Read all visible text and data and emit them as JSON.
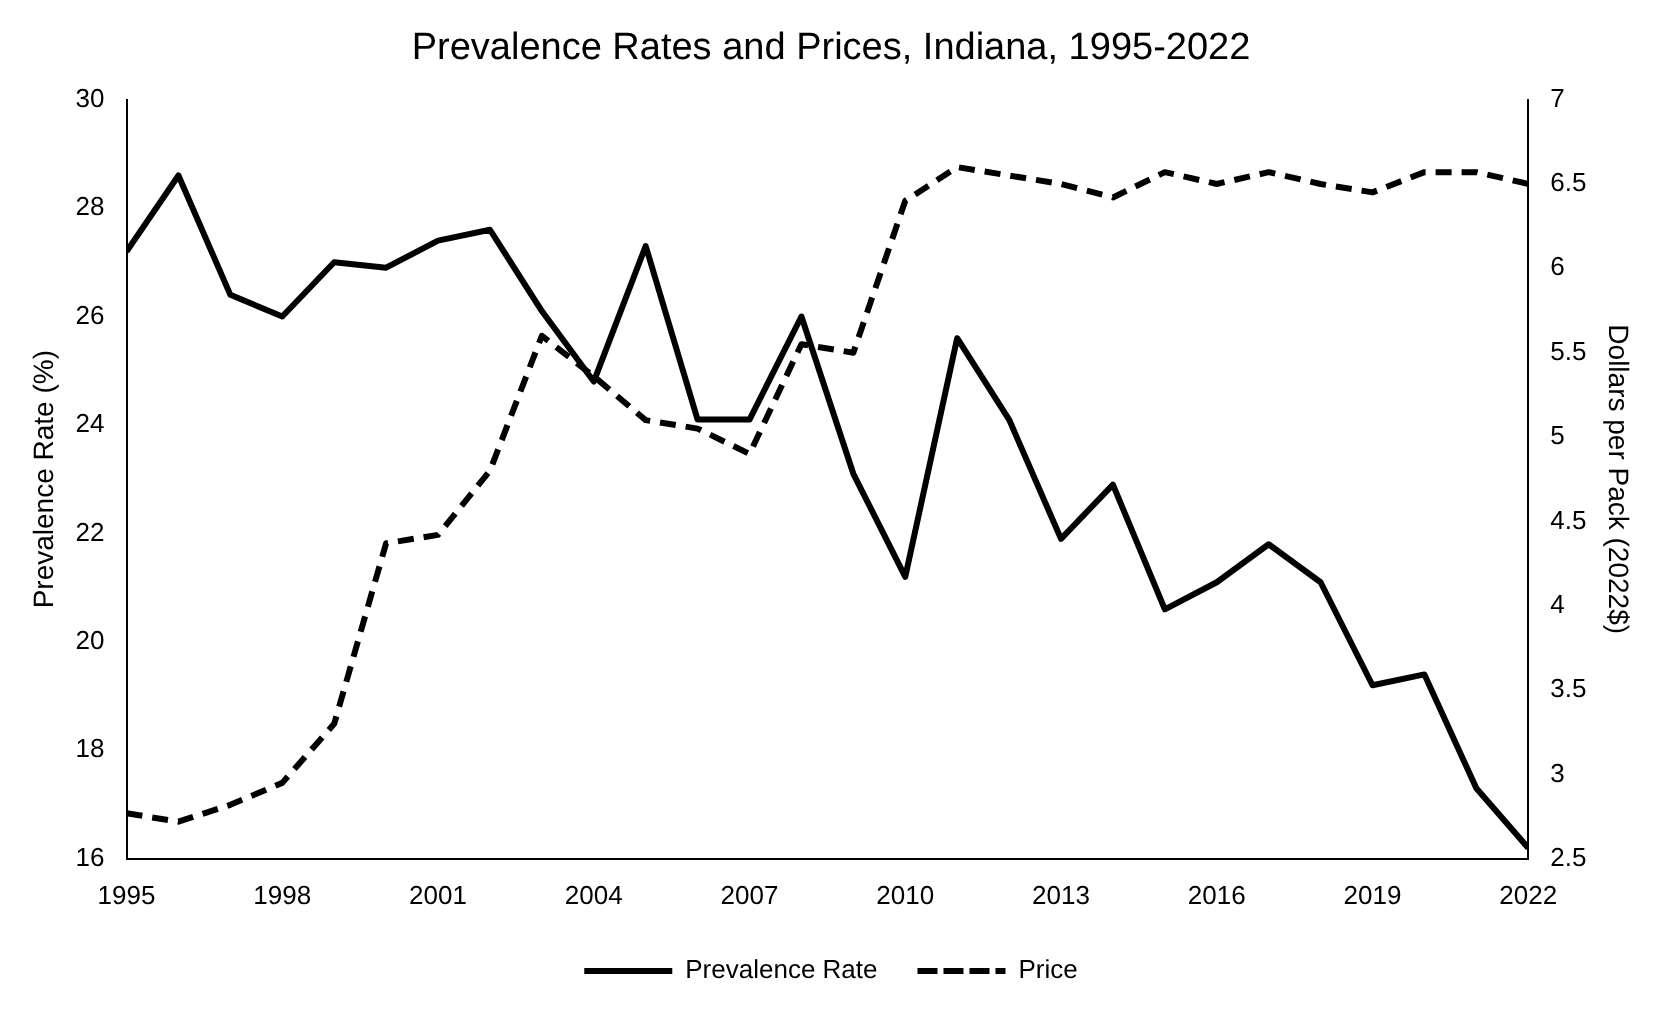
{
  "chart_data": {
    "type": "line",
    "title": "Prevalence Rates and Prices, Indiana, 1995-2022",
    "ylabel": "Prevalence Rate (%)",
    "y2label": "Dollars per Pack (2022$)",
    "x": [
      1995,
      1996,
      1997,
      1998,
      1999,
      2000,
      2001,
      2002,
      2003,
      2004,
      2005,
      2006,
      2007,
      2008,
      2009,
      2010,
      2011,
      2012,
      2013,
      2014,
      2015,
      2016,
      2017,
      2018,
      2019,
      2020,
      2021,
      2022
    ],
    "xlim": [
      1995,
      2022
    ],
    "xticks": [
      1995,
      1998,
      2001,
      2004,
      2007,
      2010,
      2013,
      2016,
      2019,
      2022
    ],
    "ylim": [
      16,
      30
    ],
    "yticks": [
      16,
      18,
      20,
      22,
      24,
      26,
      28,
      30
    ],
    "y2lim": [
      2.5,
      7
    ],
    "y2ticks": [
      2.5,
      3,
      3.5,
      4,
      4.5,
      5,
      5.5,
      6,
      6.5,
      7
    ],
    "series": [
      {
        "name": "Prevalence Rate",
        "color": "#000000",
        "line_style": "solid",
        "values": [
          27.2,
          28.6,
          26.4,
          26.0,
          27.0,
          26.9,
          27.4,
          27.6,
          26.1,
          24.8,
          27.3,
          24.1,
          24.1,
          26.0,
          23.1,
          21.2,
          25.6,
          24.1,
          21.9,
          22.9,
          20.6,
          21.1,
          21.8,
          21.1,
          19.2,
          19.4,
          17.3,
          16.2
        ]
      },
      {
        "name": "Price",
        "color": "#000000",
        "line_style": "dashed",
        "axis": "y2",
        "values": [
          2.77,
          2.72,
          2.82,
          2.95,
          3.3,
          4.37,
          4.42,
          4.8,
          5.6,
          5.36,
          5.1,
          5.05,
          4.9,
          5.55,
          5.5,
          6.4,
          6.6,
          6.55,
          6.5,
          6.42,
          6.57,
          6.5,
          6.57,
          6.5,
          6.45,
          6.57,
          6.57,
          6.5
        ]
      }
    ],
    "grid": false,
    "legend": "bottom",
    "marker": "none"
  }
}
